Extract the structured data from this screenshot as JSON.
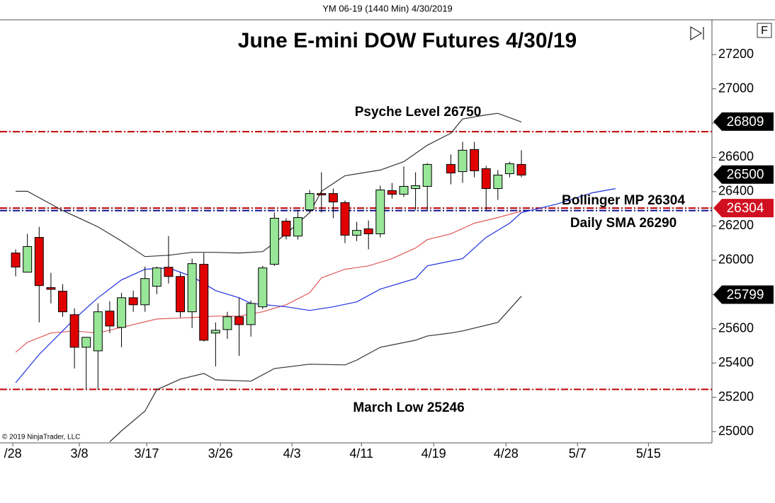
{
  "chart_data": {
    "type": "candlestick",
    "header": "YM 06-19 (1440 Min)  4/30/2019",
    "title": "June E-mini DOW Futures 4/30/19",
    "toolbar_button": "F",
    "copyright": "© 2019 NinjaTrader, LLC",
    "ylim": [
      24934,
      27403
    ],
    "yticks": [
      25000,
      25200,
      25400,
      25600,
      25800,
      26000,
      26200,
      26400,
      26600,
      26800,
      27000,
      27200
    ],
    "xlim": [
      -1.33,
      59.2
    ],
    "xticks": [
      {
        "value": -0.24,
        "label": "/28"
      },
      {
        "value": 5.42,
        "label": "3/8"
      },
      {
        "value": 11.14,
        "label": "3/17"
      },
      {
        "value": 17.41,
        "label": "3/26"
      },
      {
        "value": 23.49,
        "label": "4/3"
      },
      {
        "value": 29.4,
        "label": "4/11"
      },
      {
        "value": 35.54,
        "label": "4/19"
      },
      {
        "value": 41.69,
        "label": "4/28"
      },
      {
        "value": 47.77,
        "label": "5/7"
      },
      {
        "value": 53.8,
        "label": "5/15"
      }
    ],
    "up_color": "#98e698",
    "down_color": "#e00000",
    "candles": {
      "x": [
        0,
        1,
        2,
        3,
        4,
        5,
        6,
        7,
        8,
        9,
        10,
        11,
        12,
        13,
        14,
        15,
        16,
        17,
        18,
        19,
        20,
        21,
        22,
        23,
        24,
        25,
        26,
        27,
        28,
        29,
        30,
        31,
        32,
        33,
        34,
        35,
        37,
        38,
        39,
        40,
        41,
        42,
        43
      ],
      "open": [
        26042,
        25930,
        26133,
        25840,
        25819,
        25682,
        25492,
        25471,
        25703,
        25608,
        25781,
        25740,
        25848,
        25959,
        25905,
        25699,
        25976,
        25575,
        25595,
        25670,
        25624,
        25728,
        25976,
        26228,
        26141,
        26294,
        26389,
        26389,
        26336,
        26146,
        26183,
        26154,
        26406,
        26385,
        26418,
        26431,
        26559,
        26517,
        26646,
        26534,
        26418,
        26505,
        26559
      ],
      "high": [
        26063,
        26154,
        26195,
        25926,
        25860,
        25719,
        25550,
        25748,
        25761,
        25810,
        25823,
        25963,
        25963,
        26141,
        25926,
        26009,
        26042,
        25637,
        25699,
        25781,
        25765,
        25967,
        26278,
        26245,
        26290,
        26410,
        26513,
        26418,
        26348,
        26224,
        26232,
        26435,
        26451,
        26547,
        26513,
        26567,
        26617,
        26691,
        26691,
        26551,
        26526,
        26575,
        26642
      ],
      "low": [
        25906,
        25930,
        25637,
        25748,
        25670,
        25368,
        25244,
        25244,
        25575,
        25492,
        25699,
        25699,
        25802,
        25864,
        25666,
        25604,
        25525,
        25380,
        25541,
        25442,
        25554,
        25715,
        25967,
        26121,
        26121,
        26278,
        26278,
        26245,
        26100,
        26112,
        26063,
        26133,
        26360,
        26369,
        26294,
        26294,
        26443,
        26451,
        26484,
        26294,
        26352,
        26484,
        26484
      ],
      "close": [
        25960,
        26080,
        25852,
        25830,
        25699,
        25492,
        25550,
        25699,
        25616,
        25781,
        25740,
        25893,
        25955,
        25905,
        25699,
        25980,
        25533,
        25591,
        25670,
        25624,
        25748,
        25955,
        26245,
        26141,
        26249,
        26389,
        26381,
        26340,
        26146,
        26174,
        26154,
        26410,
        26385,
        26431,
        26435,
        26559,
        26509,
        26642,
        26522,
        26418,
        26497,
        26563,
        26497
      ]
    },
    "overlays": [
      {
        "color": "#333333",
        "x": [
          0,
          1,
          4,
          7,
          9,
          11,
          13,
          15,
          17,
          19,
          21,
          23,
          25,
          26,
          28,
          31,
          33,
          35,
          37,
          38,
          40,
          41,
          43
        ],
        "values": [
          26402,
          26402,
          26290,
          26195,
          26112,
          26021,
          26029,
          26046,
          26046,
          26042,
          26050,
          26154,
          26278,
          26402,
          26493,
          26526,
          26575,
          26671,
          26741,
          26824,
          26848,
          26857,
          26807
        ]
      },
      {
        "color": "#e05a5a",
        "x": [
          0,
          1,
          3,
          5,
          7,
          9,
          12,
          15,
          17,
          19,
          21,
          23,
          25,
          26,
          28,
          30,
          32,
          34,
          35,
          37,
          39,
          41,
          43
        ],
        "values": [
          25463,
          25521,
          25575,
          25587,
          25575,
          25608,
          25657,
          25665,
          25674,
          25674,
          25699,
          25740,
          25810,
          25897,
          25947,
          25967,
          26009,
          26071,
          26120,
          26154,
          26216,
          26249,
          26286
        ]
      },
      {
        "color": "#2030e0",
        "x": [
          0,
          2,
          5,
          7,
          9,
          11,
          13,
          15,
          17,
          19,
          20,
          23,
          25,
          27,
          29,
          31,
          34,
          35,
          38,
          40,
          42,
          43,
          46,
          49,
          51
        ],
        "values": [
          25285,
          25450,
          25657,
          25781,
          25885,
          25947,
          25955,
          25905,
          25823,
          25781,
          25748,
          25728,
          25707,
          25728,
          25757,
          25831,
          25893,
          25967,
          26009,
          26133,
          26216,
          26278,
          26327,
          26393,
          26418
        ]
      },
      {
        "color": "#333333",
        "x": [
          8,
          9,
          11,
          12,
          14,
          16,
          17,
          20,
          22,
          25,
          28,
          29,
          31,
          34,
          35,
          37,
          38,
          41,
          43
        ],
        "values": [
          24940,
          25004,
          25120,
          25244,
          25306,
          25339,
          25302,
          25294,
          25368,
          25393,
          25389,
          25417,
          25492,
          25533,
          25558,
          25575,
          25587,
          25637,
          25790
        ]
      }
    ],
    "hlines": [
      {
        "label": "Psyche Level 26750",
        "value": 26750,
        "color": "#c00000"
      },
      {
        "label": "Bollinger MP 26304",
        "value": 26304,
        "color": "#c00000"
      },
      {
        "label": "Daily SMA 26290",
        "value": 26290,
        "color": "#10108a"
      },
      {
        "label": "March Low 25246",
        "value": 25246,
        "color": "#c00000"
      }
    ],
    "price_markers": [
      {
        "value": 26809,
        "color": "#000000"
      },
      {
        "value": 26500,
        "color": "#000000"
      },
      {
        "value": 26304,
        "color": "#d01020"
      },
      {
        "value": 25799,
        "color": "#000000"
      }
    ]
  }
}
